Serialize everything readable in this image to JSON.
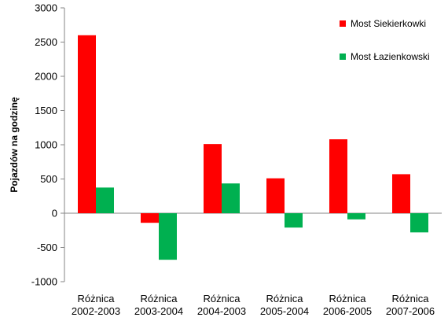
{
  "chart_data": {
    "type": "bar",
    "categories": [
      [
        "Różnica",
        "2002-2003"
      ],
      [
        "Różnica",
        "2003-2004"
      ],
      [
        "Różnica",
        "2004-2003"
      ],
      [
        "Różnica",
        "2005-2004"
      ],
      [
        "Różnica",
        "2006-2005"
      ],
      [
        "Różnica",
        "2007-2006"
      ]
    ],
    "series": [
      {
        "name": "Most Siekierkowki",
        "color": "#ff0000",
        "values": [
          2600,
          -140,
          1010,
          510,
          1080,
          570
        ]
      },
      {
        "name": "Most Łazienkowski",
        "color": "#00b050",
        "values": [
          375,
          -680,
          435,
          -210,
          -90,
          -280
        ]
      }
    ],
    "ylabel": "Pojazdów na godzinę",
    "ylim": [
      -1000,
      3000
    ],
    "yticks": [
      -1000,
      -500,
      0,
      500,
      1000,
      1500,
      2000,
      2500,
      3000
    ],
    "grid": false,
    "legend": "top-right"
  }
}
